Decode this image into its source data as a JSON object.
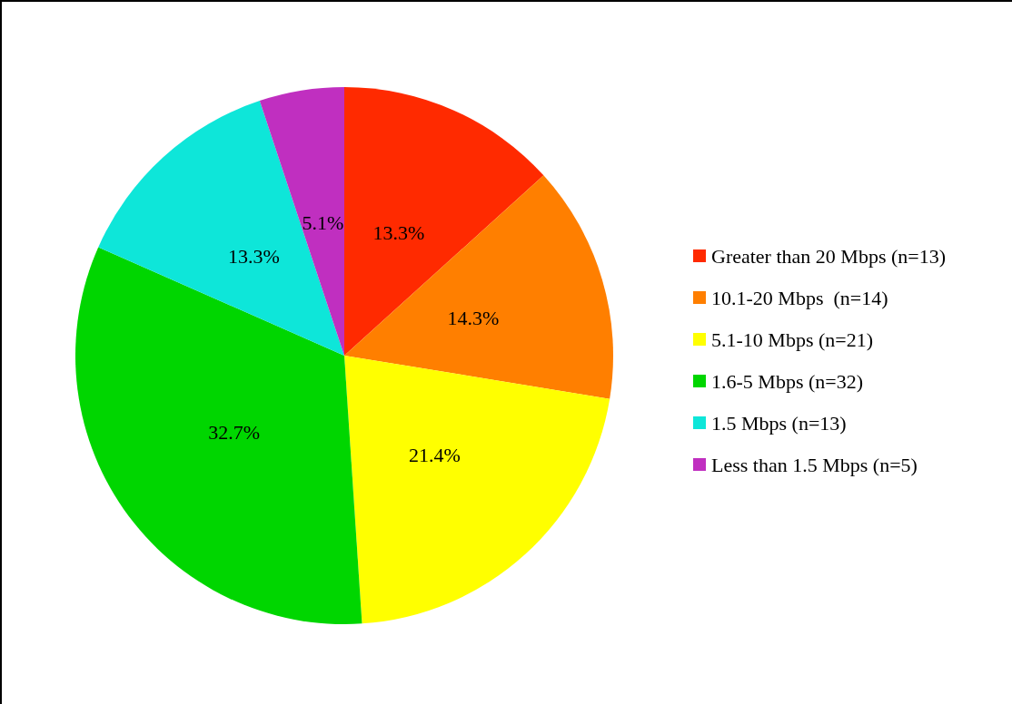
{
  "chart_data": {
    "type": "pie",
    "categories": [
      "Greater than 20 Mbps (n=13)",
      "10.1-20 Mbps  (n=14)",
      "5.1-10 Mbps (n=21)",
      "1.6-5 Mbps (n=32)",
      "1.5 Mbps (n=13)",
      "Less than 1.5 Mbps (n=5)"
    ],
    "values": [
      13.3,
      14.3,
      21.4,
      32.7,
      13.3,
      5.1
    ],
    "value_labels": [
      "13.3%",
      "14.3%",
      "21.4%",
      "32.7%",
      "13.3%",
      "5.1%"
    ],
    "colors": [
      "#ff2a00",
      "#ff7f00",
      "#ffff00",
      "#00d600",
      "#0ee6d9",
      "#c02fc0"
    ],
    "legend": "right"
  }
}
